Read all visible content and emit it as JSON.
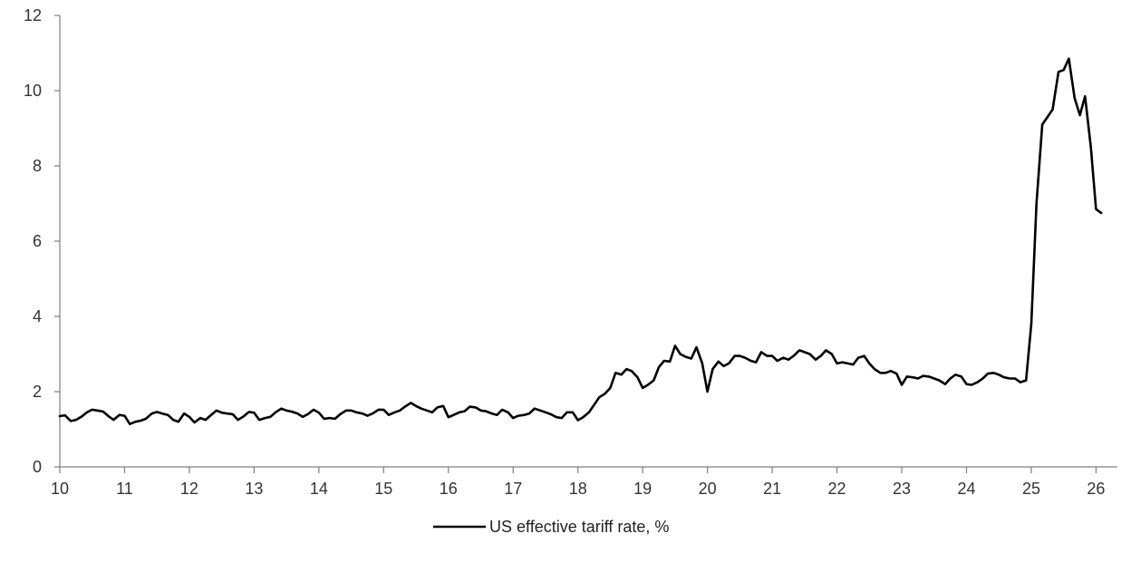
{
  "chart_data": {
    "type": "line",
    "title": "",
    "xlabel": "",
    "ylabel": "",
    "x_axis": {
      "min": 10,
      "max": 26.33,
      "ticks": [
        10,
        11,
        12,
        13,
        14,
        15,
        16,
        17,
        18,
        19,
        20,
        21,
        22,
        23,
        24,
        25,
        26
      ],
      "tick_labels": [
        "10",
        "11",
        "12",
        "13",
        "14",
        "15",
        "16",
        "17",
        "18",
        "19",
        "20",
        "21",
        "22",
        "23",
        "24",
        "25",
        "26"
      ]
    },
    "y_axis": {
      "min": 0,
      "max": 12,
      "ticks": [
        0,
        2,
        4,
        6,
        8,
        10,
        12
      ],
      "tick_labels": [
        "0",
        "2",
        "4",
        "6",
        "8",
        "10",
        "12"
      ]
    },
    "grid": false,
    "legend_position": "bottom-center",
    "series": [
      {
        "name": "US effective tariff rate, %",
        "color": "#000000",
        "points": [
          [
            10.0,
            1.35
          ],
          [
            10.08,
            1.37
          ],
          [
            10.17,
            1.22
          ],
          [
            10.25,
            1.25
          ],
          [
            10.33,
            1.33
          ],
          [
            10.42,
            1.45
          ],
          [
            10.5,
            1.52
          ],
          [
            10.58,
            1.5
          ],
          [
            10.67,
            1.47
          ],
          [
            10.75,
            1.35
          ],
          [
            10.83,
            1.25
          ],
          [
            10.92,
            1.38
          ],
          [
            11.0,
            1.36
          ],
          [
            11.08,
            1.14
          ],
          [
            11.17,
            1.2
          ],
          [
            11.25,
            1.23
          ],
          [
            11.33,
            1.28
          ],
          [
            11.42,
            1.42
          ],
          [
            11.5,
            1.46
          ],
          [
            11.58,
            1.42
          ],
          [
            11.67,
            1.38
          ],
          [
            11.75,
            1.25
          ],
          [
            11.83,
            1.2
          ],
          [
            11.92,
            1.42
          ],
          [
            12.0,
            1.33
          ],
          [
            12.08,
            1.18
          ],
          [
            12.17,
            1.3
          ],
          [
            12.25,
            1.25
          ],
          [
            12.33,
            1.37
          ],
          [
            12.42,
            1.5
          ],
          [
            12.5,
            1.44
          ],
          [
            12.58,
            1.42
          ],
          [
            12.67,
            1.4
          ],
          [
            12.75,
            1.25
          ],
          [
            12.83,
            1.33
          ],
          [
            12.92,
            1.46
          ],
          [
            13.0,
            1.44
          ],
          [
            13.08,
            1.25
          ],
          [
            13.17,
            1.3
          ],
          [
            13.25,
            1.33
          ],
          [
            13.33,
            1.45
          ],
          [
            13.42,
            1.55
          ],
          [
            13.5,
            1.5
          ],
          [
            13.58,
            1.47
          ],
          [
            13.67,
            1.42
          ],
          [
            13.75,
            1.33
          ],
          [
            13.83,
            1.4
          ],
          [
            13.92,
            1.52
          ],
          [
            14.0,
            1.44
          ],
          [
            14.08,
            1.28
          ],
          [
            14.17,
            1.3
          ],
          [
            14.25,
            1.28
          ],
          [
            14.33,
            1.4
          ],
          [
            14.42,
            1.5
          ],
          [
            14.5,
            1.5
          ],
          [
            14.58,
            1.45
          ],
          [
            14.67,
            1.42
          ],
          [
            14.75,
            1.36
          ],
          [
            14.83,
            1.42
          ],
          [
            14.92,
            1.52
          ],
          [
            15.0,
            1.52
          ],
          [
            15.08,
            1.38
          ],
          [
            15.17,
            1.45
          ],
          [
            15.25,
            1.5
          ],
          [
            15.33,
            1.6
          ],
          [
            15.42,
            1.7
          ],
          [
            15.5,
            1.62
          ],
          [
            15.58,
            1.55
          ],
          [
            15.67,
            1.5
          ],
          [
            15.75,
            1.45
          ],
          [
            15.83,
            1.58
          ],
          [
            15.92,
            1.62
          ],
          [
            16.0,
            1.32
          ],
          [
            16.08,
            1.38
          ],
          [
            16.17,
            1.45
          ],
          [
            16.25,
            1.48
          ],
          [
            16.33,
            1.6
          ],
          [
            16.42,
            1.58
          ],
          [
            16.5,
            1.5
          ],
          [
            16.58,
            1.48
          ],
          [
            16.67,
            1.42
          ],
          [
            16.75,
            1.38
          ],
          [
            16.83,
            1.52
          ],
          [
            16.92,
            1.45
          ],
          [
            17.0,
            1.3
          ],
          [
            17.08,
            1.36
          ],
          [
            17.17,
            1.38
          ],
          [
            17.25,
            1.42
          ],
          [
            17.33,
            1.55
          ],
          [
            17.42,
            1.5
          ],
          [
            17.5,
            1.45
          ],
          [
            17.58,
            1.4
          ],
          [
            17.67,
            1.32
          ],
          [
            17.75,
            1.3
          ],
          [
            17.83,
            1.45
          ],
          [
            17.92,
            1.45
          ],
          [
            18.0,
            1.24
          ],
          [
            18.08,
            1.32
          ],
          [
            18.17,
            1.45
          ],
          [
            18.25,
            1.65
          ],
          [
            18.33,
            1.85
          ],
          [
            18.42,
            1.95
          ],
          [
            18.5,
            2.1
          ],
          [
            18.58,
            2.5
          ],
          [
            18.67,
            2.45
          ],
          [
            18.75,
            2.6
          ],
          [
            18.83,
            2.55
          ],
          [
            18.92,
            2.38
          ],
          [
            19.0,
            2.1
          ],
          [
            19.08,
            2.18
          ],
          [
            19.17,
            2.3
          ],
          [
            19.25,
            2.65
          ],
          [
            19.33,
            2.82
          ],
          [
            19.42,
            2.8
          ],
          [
            19.5,
            3.22
          ],
          [
            19.58,
            3.0
          ],
          [
            19.67,
            2.92
          ],
          [
            19.75,
            2.88
          ],
          [
            19.83,
            3.18
          ],
          [
            19.92,
            2.75
          ],
          [
            20.0,
            2.0
          ],
          [
            20.08,
            2.6
          ],
          [
            20.17,
            2.8
          ],
          [
            20.25,
            2.68
          ],
          [
            20.33,
            2.75
          ],
          [
            20.42,
            2.95
          ],
          [
            20.5,
            2.95
          ],
          [
            20.58,
            2.9
          ],
          [
            20.67,
            2.82
          ],
          [
            20.75,
            2.78
          ],
          [
            20.83,
            3.05
          ],
          [
            20.92,
            2.95
          ],
          [
            21.0,
            2.95
          ],
          [
            21.08,
            2.82
          ],
          [
            21.17,
            2.9
          ],
          [
            21.25,
            2.85
          ],
          [
            21.33,
            2.95
          ],
          [
            21.42,
            3.1
          ],
          [
            21.5,
            3.05
          ],
          [
            21.58,
            3.0
          ],
          [
            21.67,
            2.85
          ],
          [
            21.75,
            2.95
          ],
          [
            21.83,
            3.1
          ],
          [
            21.92,
            3.0
          ],
          [
            22.0,
            2.75
          ],
          [
            22.08,
            2.78
          ],
          [
            22.17,
            2.75
          ],
          [
            22.25,
            2.72
          ],
          [
            22.33,
            2.9
          ],
          [
            22.42,
            2.95
          ],
          [
            22.5,
            2.75
          ],
          [
            22.58,
            2.6
          ],
          [
            22.67,
            2.5
          ],
          [
            22.75,
            2.5
          ],
          [
            22.83,
            2.55
          ],
          [
            22.92,
            2.48
          ],
          [
            23.0,
            2.18
          ],
          [
            23.08,
            2.4
          ],
          [
            23.17,
            2.38
          ],
          [
            23.25,
            2.35
          ],
          [
            23.33,
            2.42
          ],
          [
            23.42,
            2.4
          ],
          [
            23.5,
            2.35
          ],
          [
            23.58,
            2.3
          ],
          [
            23.67,
            2.2
          ],
          [
            23.75,
            2.35
          ],
          [
            23.83,
            2.45
          ],
          [
            23.92,
            2.4
          ],
          [
            24.0,
            2.2
          ],
          [
            24.08,
            2.18
          ],
          [
            24.17,
            2.25
          ],
          [
            24.25,
            2.35
          ],
          [
            24.33,
            2.48
          ],
          [
            24.42,
            2.5
          ],
          [
            24.5,
            2.45
          ],
          [
            24.58,
            2.38
          ],
          [
            24.67,
            2.35
          ],
          [
            24.75,
            2.35
          ],
          [
            24.83,
            2.25
          ],
          [
            24.92,
            2.3
          ],
          [
            25.0,
            3.8
          ],
          [
            25.08,
            7.0
          ],
          [
            25.17,
            9.1
          ],
          [
            25.25,
            9.3
          ],
          [
            25.33,
            9.5
          ],
          [
            25.42,
            10.5
          ],
          [
            25.5,
            10.55
          ],
          [
            25.58,
            10.85
          ],
          [
            25.67,
            9.8
          ],
          [
            25.75,
            9.35
          ],
          [
            25.83,
            9.85
          ],
          [
            25.92,
            8.5
          ],
          [
            26.0,
            6.85
          ],
          [
            26.08,
            6.75
          ]
        ]
      }
    ],
    "legend": [
      {
        "label": "US effective tariff rate, %",
        "color": "#000000"
      }
    ]
  }
}
